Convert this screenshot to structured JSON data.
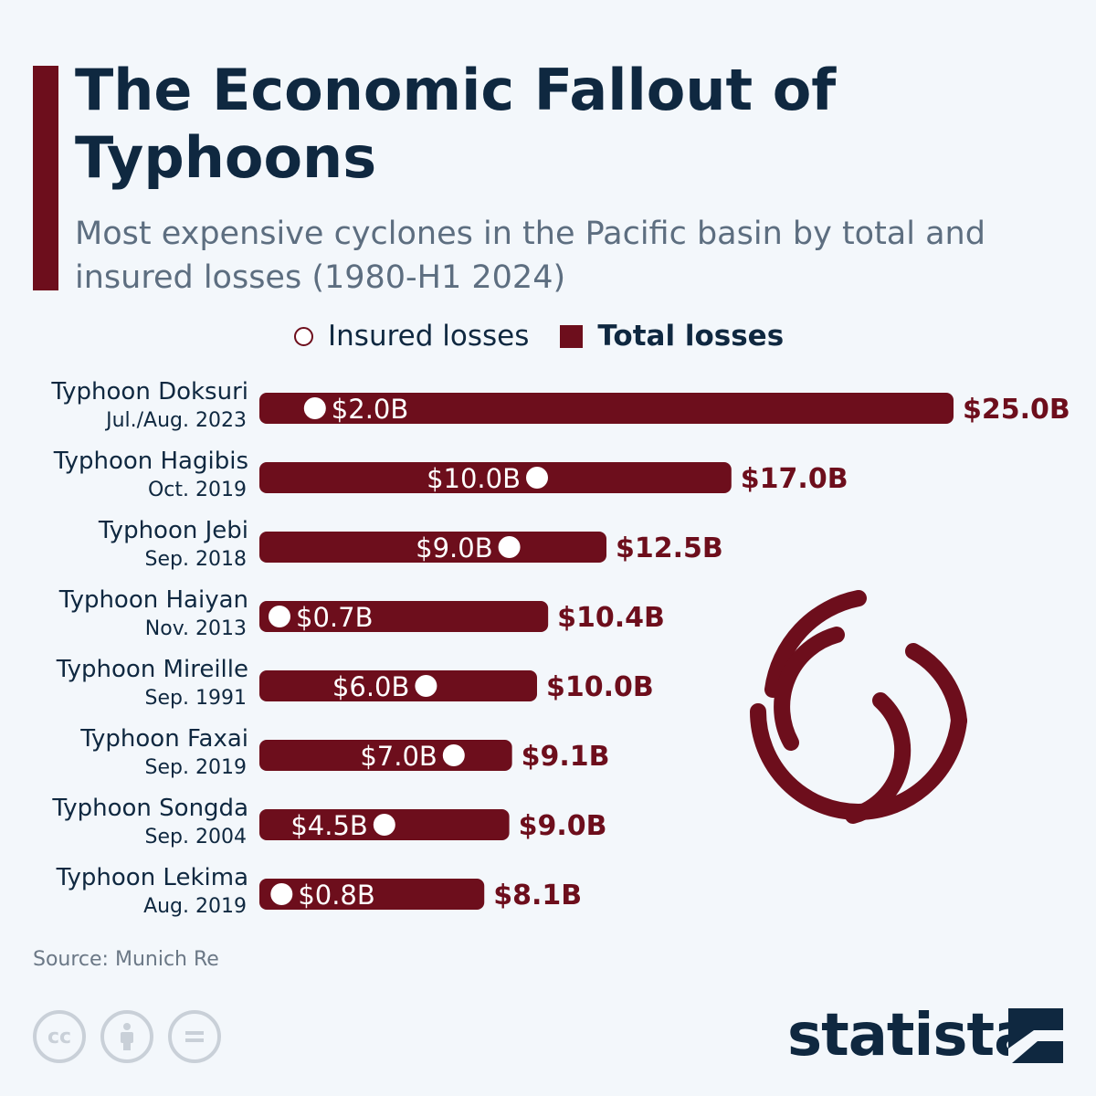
{
  "colors": {
    "accent": "#6d0e1c",
    "title": "#0f2840",
    "subtitle": "#5d6e80",
    "background": "#f3f7fb"
  },
  "header": {
    "title": "The Economic Fallout of Typhoons",
    "subtitle": "Most expensive cyclones in the Pacific basin by total and insured losses (1980-H1 2024)"
  },
  "legend": {
    "insured": "Insured losses",
    "total": "Total losses"
  },
  "chart_data": {
    "type": "bar",
    "orientation": "horizontal",
    "categories": [
      {
        "name": "Typhoon Doksuri",
        "date": "Jul./Aug. 2023"
      },
      {
        "name": "Typhoon Hagibis",
        "date": "Oct. 2019"
      },
      {
        "name": "Typhoon Jebi",
        "date": "Sep. 2018"
      },
      {
        "name": "Typhoon Haiyan",
        "date": "Nov. 2013"
      },
      {
        "name": "Typhoon Mireille",
        "date": "Sep. 1991"
      },
      {
        "name": "Typhoon Faxai",
        "date": "Sep. 2019"
      },
      {
        "name": "Typhoon Songda",
        "date": "Sep. 2004"
      },
      {
        "name": "Typhoon Lekima",
        "date": "Aug. 2019"
      }
    ],
    "series": [
      {
        "name": "Total losses",
        "values": [
          25.0,
          17.0,
          12.5,
          10.4,
          10.0,
          9.1,
          9.0,
          8.1
        ],
        "labels": [
          "$25.0B",
          "$17.0B",
          "$12.5B",
          "$10.4B",
          "$10.0B",
          "$9.1B",
          "$9.0B",
          "$8.1B"
        ]
      },
      {
        "name": "Insured losses",
        "values": [
          2.0,
          10.0,
          9.0,
          0.7,
          6.0,
          7.0,
          4.5,
          0.8
        ],
        "labels": [
          "$2.0B",
          "$10.0B",
          "$9.0B",
          "$0.7B",
          "$6.0B",
          "$7.0B",
          "$4.5B",
          "$0.8B"
        ]
      }
    ],
    "unit": "billion USD",
    "grid": false,
    "legend_position": "top"
  },
  "footer": {
    "source": "Source: Munich Re",
    "brand": "statista",
    "license_icons": [
      "cc-icon",
      "attribution-icon",
      "no-derivatives-icon"
    ]
  }
}
